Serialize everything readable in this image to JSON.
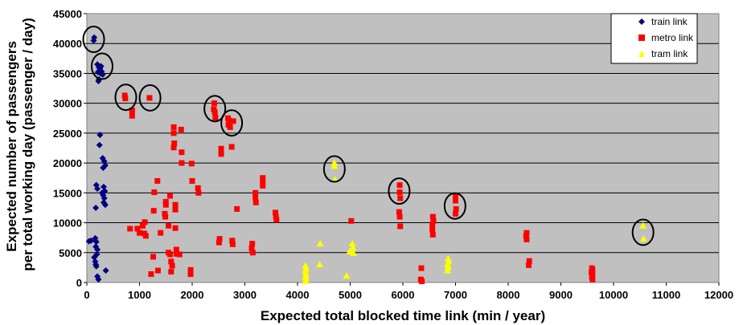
{
  "chart_data": {
    "type": "scatter",
    "title": "",
    "xlabel": "Expected total blocked time link (min / year)",
    "ylabel_lines": [
      "Expected number of passengers",
      "per total working day (passenger / day)"
    ],
    "xlim": [
      0,
      12000
    ],
    "ylim": [
      0,
      45000
    ],
    "xticks": [
      0,
      1000,
      2000,
      3000,
      4000,
      5000,
      6000,
      7000,
      8000,
      9000,
      10000,
      11000,
      12000
    ],
    "yticks": [
      0,
      5000,
      10000,
      15000,
      20000,
      25000,
      30000,
      35000,
      40000,
      45000
    ],
    "grid": "horizontal",
    "plot_background": "#c0c0c0",
    "legend_position": "top-right",
    "series": [
      {
        "name": "train link",
        "marker": "diamond",
        "color": "#000080",
        "points": [
          [
            130,
            40500
          ],
          [
            140,
            41000
          ],
          [
            200,
            36500
          ],
          [
            230,
            36000
          ],
          [
            250,
            35800
          ],
          [
            270,
            36200
          ],
          [
            210,
            35200
          ],
          [
            240,
            35500
          ],
          [
            260,
            35000
          ],
          [
            280,
            35300
          ],
          [
            300,
            34800
          ],
          [
            230,
            34000
          ],
          [
            220,
            33700
          ],
          [
            250,
            24700
          ],
          [
            240,
            23000
          ],
          [
            300,
            20800
          ],
          [
            330,
            20300
          ],
          [
            350,
            19600
          ],
          [
            310,
            19200
          ],
          [
            180,
            16300
          ],
          [
            200,
            15700
          ],
          [
            320,
            16000
          ],
          [
            340,
            15300
          ],
          [
            290,
            15000
          ],
          [
            310,
            14600
          ],
          [
            330,
            14100
          ],
          [
            320,
            13400
          ],
          [
            350,
            13000
          ],
          [
            170,
            12500
          ],
          [
            80,
            7000
          ],
          [
            40,
            6900
          ],
          [
            160,
            7400
          ],
          [
            180,
            6800
          ],
          [
            170,
            6000
          ],
          [
            200,
            5500
          ],
          [
            190,
            4700
          ],
          [
            140,
            4200
          ],
          [
            160,
            3500
          ],
          [
            170,
            3000
          ],
          [
            180,
            2700
          ],
          [
            200,
            1000
          ],
          [
            220,
            500
          ],
          [
            360,
            2000
          ]
        ]
      },
      {
        "name": "metro link",
        "marker": "square",
        "color": "#ff0000",
        "points": [
          [
            720,
            31300
          ],
          [
            730,
            30800
          ],
          [
            860,
            28800
          ],
          [
            860,
            27900
          ],
          [
            1190,
            30900
          ],
          [
            820,
            9000
          ],
          [
            960,
            9000
          ],
          [
            1000,
            8300
          ],
          [
            1060,
            9500
          ],
          [
            1100,
            10100
          ],
          [
            1120,
            7800
          ],
          [
            1090,
            8200
          ],
          [
            1220,
            1400
          ],
          [
            1260,
            4300
          ],
          [
            1270,
            12000
          ],
          [
            1280,
            15100
          ],
          [
            1340,
            17000
          ],
          [
            1400,
            8300
          ],
          [
            1350,
            2000
          ],
          [
            1480,
            11500
          ],
          [
            1490,
            11000
          ],
          [
            1500,
            13500
          ],
          [
            1500,
            13000
          ],
          [
            1550,
            9500
          ],
          [
            1550,
            5000
          ],
          [
            1580,
            14500
          ],
          [
            1580,
            4700
          ],
          [
            1600,
            3500
          ],
          [
            1620,
            2800
          ],
          [
            1600,
            1800
          ],
          [
            1650,
            26000
          ],
          [
            1650,
            25000
          ],
          [
            1660,
            23300
          ],
          [
            1650,
            22600
          ],
          [
            1680,
            13000
          ],
          [
            1680,
            12200
          ],
          [
            1680,
            9100
          ],
          [
            1700,
            5500
          ],
          [
            1700,
            4800
          ],
          [
            1760,
            4700
          ],
          [
            1790,
            25600
          ],
          [
            1800,
            21800
          ],
          [
            1800,
            20000
          ],
          [
            1970,
            2100
          ],
          [
            1970,
            1400
          ],
          [
            1990,
            19900
          ],
          [
            2000,
            17000
          ],
          [
            2110,
            15800
          ],
          [
            2120,
            15000
          ],
          [
            2420,
            30000
          ],
          [
            2410,
            29000
          ],
          [
            2430,
            28500
          ],
          [
            2440,
            27600
          ],
          [
            2520,
            7300
          ],
          [
            2510,
            6700
          ],
          [
            2550,
            22400
          ],
          [
            2550,
            21500
          ],
          [
            2680,
            27500
          ],
          [
            2700,
            27100
          ],
          [
            2690,
            26400
          ],
          [
            2720,
            26000
          ],
          [
            2750,
            22700
          ],
          [
            2780,
            27000
          ],
          [
            2760,
            7000
          ],
          [
            2770,
            6400
          ],
          [
            2850,
            12300
          ],
          [
            3140,
            6500
          ],
          [
            3130,
            5700
          ],
          [
            3150,
            5000
          ],
          [
            3200,
            15000
          ],
          [
            3200,
            14200
          ],
          [
            3210,
            13400
          ],
          [
            3340,
            17500
          ],
          [
            3340,
            16800
          ],
          [
            3340,
            16200
          ],
          [
            3580,
            11700
          ],
          [
            3590,
            11000
          ],
          [
            3600,
            10500
          ],
          [
            5020,
            10300
          ],
          [
            5940,
            16300
          ],
          [
            5940,
            15100
          ],
          [
            5950,
            14100
          ],
          [
            5930,
            11800
          ],
          [
            5940,
            11000
          ],
          [
            5950,
            9400
          ],
          [
            6350,
            2400
          ],
          [
            6340,
            500
          ],
          [
            6360,
            200
          ],
          [
            6570,
            11000
          ],
          [
            6580,
            10300
          ],
          [
            6560,
            9700
          ],
          [
            6560,
            8800
          ],
          [
            6570,
            8000
          ],
          [
            7000,
            14400
          ],
          [
            7000,
            13700
          ],
          [
            7010,
            12300
          ],
          [
            7000,
            11500
          ],
          [
            8350,
            8300
          ],
          [
            8340,
            7800
          ],
          [
            8350,
            7200
          ],
          [
            8400,
            3600
          ],
          [
            8390,
            2900
          ],
          [
            9590,
            2400
          ],
          [
            9600,
            2100
          ],
          [
            9580,
            1700
          ],
          [
            9600,
            1300
          ],
          [
            9590,
            900
          ],
          [
            9600,
            500
          ]
        ]
      },
      {
        "name": "tram link",
        "marker": "triangle",
        "color": "#ffff00",
        "points": [
          [
            4150,
            2800
          ],
          [
            4160,
            2300
          ],
          [
            4150,
            1800
          ],
          [
            4160,
            1300
          ],
          [
            4150,
            900
          ],
          [
            4160,
            500
          ],
          [
            4150,
            200
          ],
          [
            4430,
            6500
          ],
          [
            4420,
            3000
          ],
          [
            4700,
            20000
          ],
          [
            4700,
            19500
          ],
          [
            4710,
            17200
          ],
          [
            4930,
            1100
          ],
          [
            4990,
            5200
          ],
          [
            5040,
            6500
          ],
          [
            5050,
            5800
          ],
          [
            5060,
            4900
          ],
          [
            6860,
            4000
          ],
          [
            6870,
            3500
          ],
          [
            6850,
            3000
          ],
          [
            6860,
            2500
          ],
          [
            6850,
            2000
          ],
          [
            10560,
            9500
          ],
          [
            10570,
            7300
          ]
        ]
      }
    ],
    "circled_points": [
      [
        130,
        40700
      ],
      [
        290,
        36200
      ],
      [
        740,
        31000
      ],
      [
        1200,
        30900
      ],
      [
        2430,
        29100
      ],
      [
        2750,
        26700
      ],
      [
        4700,
        19000
      ],
      [
        5930,
        15300
      ],
      [
        6990,
        12800
      ],
      [
        10560,
        8400
      ]
    ]
  }
}
